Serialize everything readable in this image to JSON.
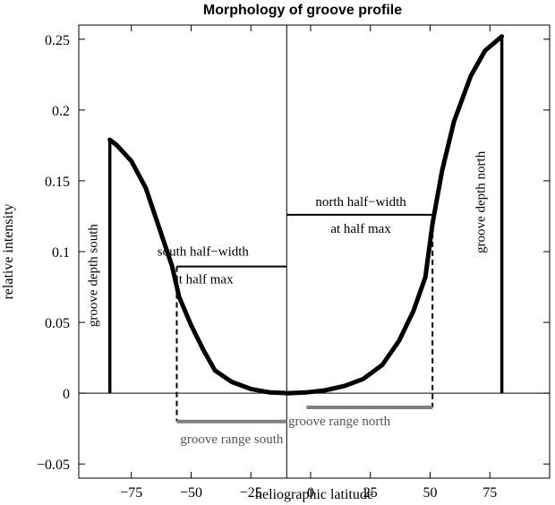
{
  "chart_data": {
    "type": "line",
    "title": "Morphology of groove profile",
    "xlabel": "heliographic latitude",
    "ylabel": "relative intensity",
    "xlim": [
      -97,
      100
    ],
    "ylim": [
      -0.06,
      0.26
    ],
    "xticks": [
      -75,
      -50,
      -25,
      0,
      25,
      50,
      75
    ],
    "xtick_labels": [
      "−75",
      "−50",
      "−25",
      "0",
      "25",
      "50",
      "75"
    ],
    "yticks": [
      -0.05,
      0,
      0.05,
      0.1,
      0.15,
      0.2,
      0.25
    ],
    "ytick_labels": [
      "−0.05",
      "0",
      "0.05",
      "0.1",
      "0.15",
      "0.2",
      "0.25"
    ],
    "grid": false,
    "series": [
      {
        "x": [
          -84,
          -81,
          -75,
          -69,
          -63,
          -58,
          -55,
          -50,
          -45,
          -40,
          -33,
          -25,
          -17,
          -9,
          -2,
          6,
          14,
          22,
          30,
          37,
          43,
          48,
          51,
          55,
          60,
          67,
          73,
          80
        ],
        "y": [
          0.179,
          0.175,
          0.164,
          0.145,
          0.115,
          0.09,
          0.068,
          0.048,
          0.031,
          0.016,
          0.008,
          0.003,
          0.0005,
          0.0,
          0.0005,
          0.002,
          0.005,
          0.01,
          0.02,
          0.037,
          0.058,
          0.082,
          0.12,
          0.157,
          0.192,
          0.224,
          0.242,
          0.252
        ]
      }
    ],
    "annotations": {
      "south_depth": "groove depth south",
      "north_depth": "groove depth north",
      "south_half_width_line1": "south half−width",
      "south_half_width_line2": "at half max",
      "north_half_width_line1": "north half−width",
      "north_half_width_line2": "at half max",
      "range_south": "groove range south",
      "range_north": "groove range north"
    },
    "reference_values": {
      "center_latitude": -10,
      "south_edge_latitude": -84,
      "north_edge_latitude": 80,
      "south_depth": 0.179,
      "north_depth": 0.252,
      "south_half_max_latitude": -56,
      "north_half_max_latitude": 51,
      "south_half_max": 0.0895,
      "north_half_max": 0.126,
      "range_south_level": -0.02,
      "range_north_level": -0.01
    }
  }
}
